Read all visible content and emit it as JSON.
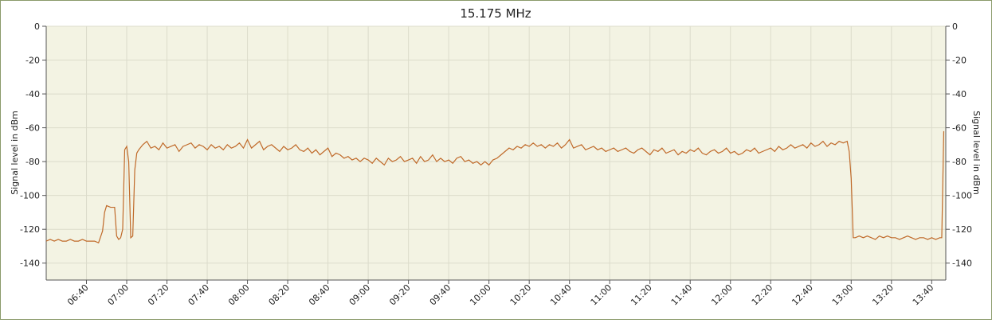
{
  "chart_data": {
    "type": "line",
    "title": "15.175 MHz",
    "ylabel": "Signal level in dBm",
    "y2label": "Signal level in dBm",
    "xlim": [
      380,
      827
    ],
    "xticks": [
      {
        "value": 400,
        "label": "06:40"
      },
      {
        "value": 420,
        "label": "07:00"
      },
      {
        "value": 440,
        "label": "07:20"
      },
      {
        "value": 460,
        "label": "07:40"
      },
      {
        "value": 480,
        "label": "08:00"
      },
      {
        "value": 500,
        "label": "08:20"
      },
      {
        "value": 520,
        "label": "08:40"
      },
      {
        "value": 540,
        "label": "09:00"
      },
      {
        "value": 560,
        "label": "09:20"
      },
      {
        "value": 580,
        "label": "09:40"
      },
      {
        "value": 600,
        "label": "10:00"
      },
      {
        "value": 620,
        "label": "10:20"
      },
      {
        "value": 640,
        "label": "10:40"
      },
      {
        "value": 660,
        "label": "11:00"
      },
      {
        "value": 680,
        "label": "11:20"
      },
      {
        "value": 700,
        "label": "11:40"
      },
      {
        "value": 720,
        "label": "12:00"
      },
      {
        "value": 740,
        "label": "12:20"
      },
      {
        "value": 760,
        "label": "12:40"
      },
      {
        "value": 780,
        "label": "13:00"
      },
      {
        "value": 800,
        "label": "13:20"
      },
      {
        "value": 820,
        "label": "13:40"
      }
    ],
    "ylim": [
      -150,
      0
    ],
    "yticks": [
      0,
      -20,
      -40,
      -60,
      -80,
      -100,
      -120,
      -140
    ],
    "y2lim": [
      -150,
      0
    ],
    "y2ticks": [
      0,
      -20,
      -40,
      -60,
      -80,
      -100,
      -120,
      -140
    ],
    "grid": true,
    "x": [
      380,
      382,
      384,
      386,
      388,
      390,
      392,
      394,
      396,
      398,
      400,
      402,
      404,
      406,
      408,
      409,
      410,
      412,
      414,
      415,
      416,
      417,
      418,
      419,
      420,
      421,
      422,
      423,
      424,
      425,
      426,
      428,
      430,
      432,
      434,
      436,
      438,
      440,
      442,
      444,
      446,
      448,
      450,
      452,
      454,
      456,
      458,
      460,
      462,
      464,
      466,
      468,
      470,
      472,
      474,
      476,
      478,
      480,
      482,
      484,
      486,
      488,
      490,
      492,
      494,
      496,
      498,
      500,
      502,
      504,
      506,
      508,
      510,
      512,
      514,
      516,
      518,
      520,
      522,
      524,
      526,
      528,
      530,
      532,
      534,
      536,
      538,
      540,
      542,
      544,
      546,
      548,
      550,
      552,
      554,
      556,
      558,
      560,
      562,
      564,
      566,
      568,
      570,
      572,
      574,
      576,
      578,
      580,
      582,
      584,
      586,
      588,
      590,
      592,
      594,
      596,
      598,
      600,
      602,
      604,
      606,
      608,
      610,
      612,
      614,
      616,
      618,
      620,
      622,
      624,
      626,
      628,
      630,
      632,
      634,
      636,
      638,
      640,
      642,
      644,
      646,
      648,
      650,
      652,
      654,
      656,
      658,
      660,
      662,
      664,
      666,
      668,
      670,
      672,
      674,
      676,
      678,
      680,
      682,
      684,
      686,
      688,
      690,
      692,
      694,
      696,
      698,
      700,
      702,
      704,
      706,
      708,
      710,
      712,
      714,
      716,
      718,
      720,
      722,
      724,
      726,
      728,
      730,
      732,
      734,
      736,
      738,
      740,
      742,
      744,
      746,
      748,
      750,
      752,
      754,
      756,
      758,
      760,
      762,
      764,
      766,
      768,
      770,
      772,
      774,
      776,
      778,
      779,
      780,
      781,
      782,
      784,
      786,
      788,
      790,
      792,
      794,
      796,
      798,
      800,
      802,
      804,
      806,
      808,
      810,
      812,
      814,
      816,
      818,
      820,
      822,
      824,
      825,
      826
    ],
    "series": [
      {
        "name": "15.175 MHz",
        "color": "#c06a2a",
        "values": [
          -127,
          -126,
          -127,
          -126,
          -127,
          -127,
          -126,
          -127,
          -127,
          -126,
          -127,
          -127,
          -127,
          -128,
          -121,
          -110,
          -106,
          -107,
          -107,
          -124,
          -126,
          -125,
          -120,
          -73,
          -71,
          -80,
          -125,
          -124,
          -85,
          -75,
          -73,
          -70,
          -68,
          -72,
          -71,
          -73,
          -69,
          -72,
          -71,
          -70,
          -74,
          -71,
          -70,
          -69,
          -72,
          -70,
          -71,
          -73,
          -70,
          -72,
          -71,
          -73,
          -70,
          -72,
          -71,
          -69,
          -72,
          -67,
          -72,
          -70,
          -68,
          -73,
          -71,
          -70,
          -72,
          -74,
          -71,
          -73,
          -72,
          -70,
          -73,
          -74,
          -72,
          -75,
          -73,
          -76,
          -74,
          -72,
          -77,
          -75,
          -76,
          -78,
          -77,
          -79,
          -78,
          -80,
          -78,
          -79,
          -81,
          -78,
          -80,
          -82,
          -78,
          -80,
          -79,
          -77,
          -80,
          -79,
          -78,
          -81,
          -77,
          -80,
          -79,
          -76,
          -80,
          -78,
          -80,
          -79,
          -81,
          -78,
          -77,
          -80,
          -79,
          -81,
          -80,
          -82,
          -80,
          -82,
          -79,
          -78,
          -76,
          -74,
          -72,
          -73,
          -71,
          -72,
          -70,
          -71,
          -69,
          -71,
          -70,
          -72,
          -70,
          -71,
          -69,
          -72,
          -70,
          -67,
          -72,
          -71,
          -70,
          -73,
          -72,
          -71,
          -73,
          -72,
          -74,
          -73,
          -72,
          -74,
          -73,
          -72,
          -74,
          -75,
          -73,
          -72,
          -74,
          -76,
          -73,
          -74,
          -72,
          -75,
          -74,
          -73,
          -76,
          -74,
          -75,
          -73,
          -74,
          -72,
          -75,
          -76,
          -74,
          -73,
          -75,
          -74,
          -72,
          -75,
          -74,
          -76,
          -75,
          -73,
          -74,
          -72,
          -75,
          -74,
          -73,
          -72,
          -74,
          -71,
          -73,
          -72,
          -70,
          -72,
          -71,
          -70,
          -72,
          -69,
          -71,
          -70,
          -68,
          -71,
          -69,
          -70,
          -68,
          -69,
          -68,
          -74,
          -90,
          -125,
          -125,
          -124,
          -125,
          -124,
          -125,
          -126,
          -124,
          -125,
          -124,
          -125,
          -125,
          -126,
          -125,
          -124,
          -125,
          -126,
          -125,
          -125,
          -126,
          -125,
          -126,
          -125,
          -125,
          -62
        ]
      }
    ]
  }
}
